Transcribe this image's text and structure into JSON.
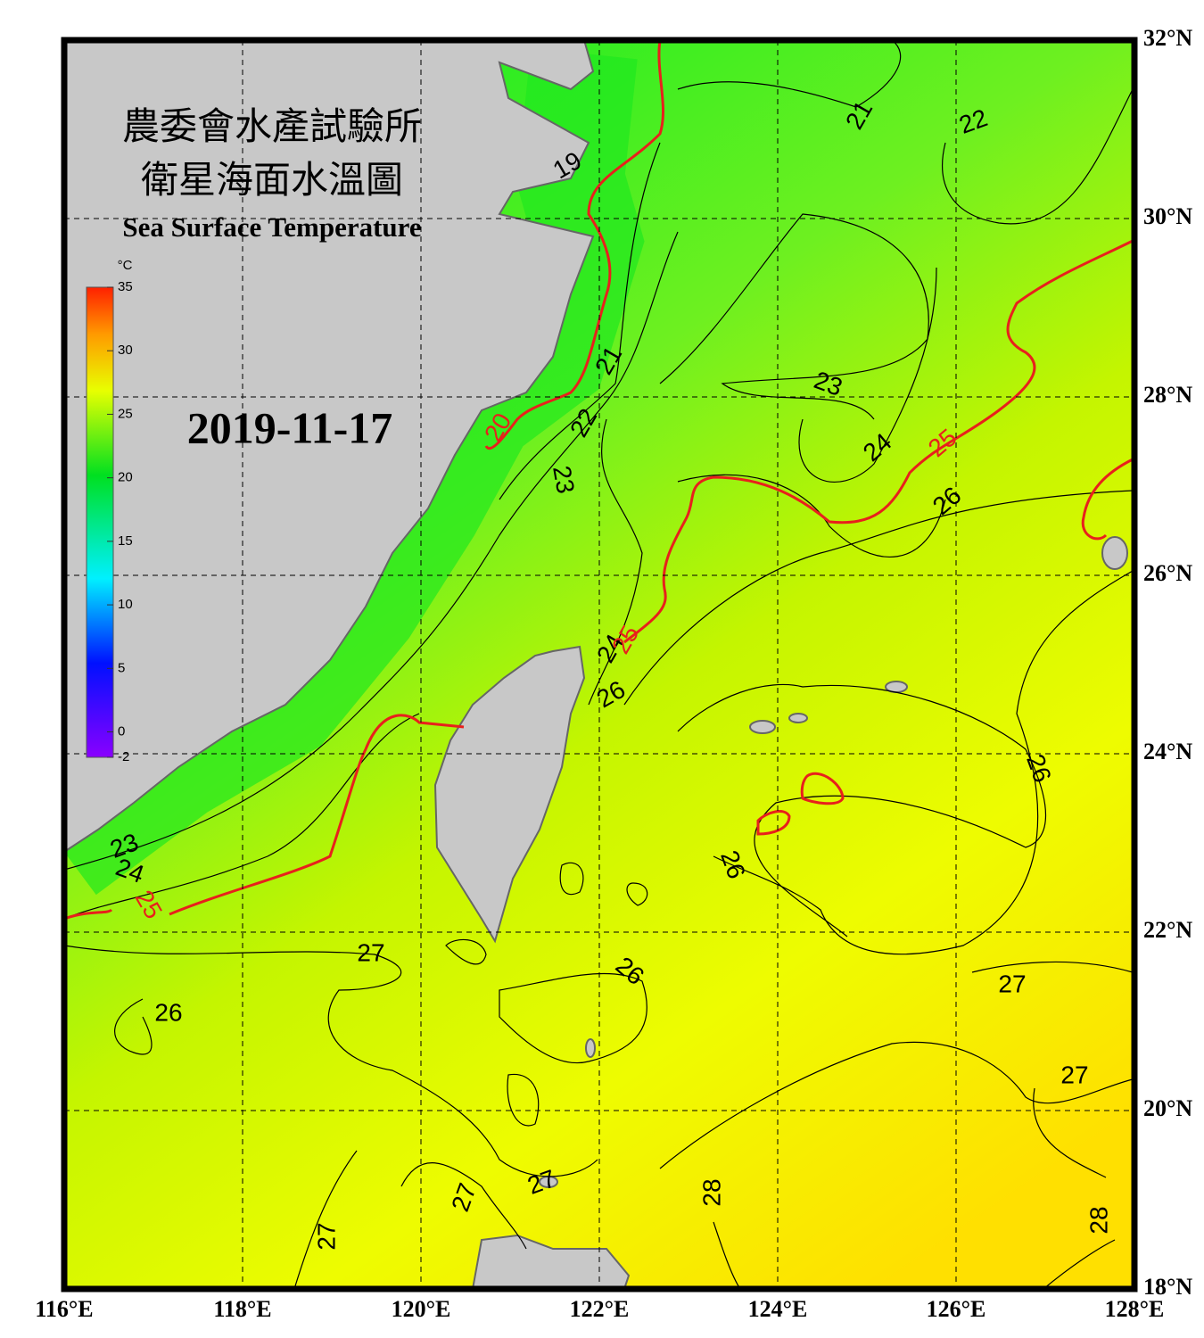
{
  "header": {
    "title_zh_1": "農委會水產試驗所",
    "title_zh_2": "衛星海面水溫圖",
    "title_en": "Sea Surface Temperature",
    "date": "2019-11-17"
  },
  "colorbar": {
    "unit": "°C",
    "range": [
      -2,
      35
    ],
    "ticks": [
      35,
      30,
      25,
      20,
      15,
      10,
      5,
      0,
      -2
    ]
  },
  "map": {
    "lon_range": [
      116,
      128
    ],
    "lat_range": [
      18,
      32
    ],
    "lon_ticks": [
      {
        "value": 116,
        "label": "116°E"
      },
      {
        "value": 118,
        "label": "118°E"
      },
      {
        "value": 120,
        "label": "120°E"
      },
      {
        "value": 122,
        "label": "122°E"
      },
      {
        "value": 124,
        "label": "124°E"
      },
      {
        "value": 126,
        "label": "126°E"
      },
      {
        "value": 128,
        "label": "128°E"
      }
    ],
    "lat_ticks": [
      {
        "value": 32,
        "label": "32°N"
      },
      {
        "value": 30,
        "label": "30°N"
      },
      {
        "value": 28,
        "label": "28°N"
      },
      {
        "value": 26,
        "label": "26°N"
      },
      {
        "value": 24,
        "label": "24°N"
      },
      {
        "value": 22,
        "label": "22°N"
      },
      {
        "value": 20,
        "label": "20°N"
      },
      {
        "value": 18,
        "label": "18°N"
      }
    ],
    "grid": true
  },
  "contour_labels": [
    {
      "text": "19",
      "color": "#000000"
    },
    {
      "text": "21",
      "color": "#000000"
    },
    {
      "text": "22",
      "color": "#000000"
    },
    {
      "text": "21",
      "color": "#000000"
    },
    {
      "text": "20",
      "color": "#e8201c"
    },
    {
      "text": "22",
      "color": "#000000"
    },
    {
      "text": "23",
      "color": "#000000"
    },
    {
      "text": "23",
      "color": "#000000"
    },
    {
      "text": "24",
      "color": "#000000"
    },
    {
      "text": "25",
      "color": "#e8201c"
    },
    {
      "text": "26",
      "color": "#000000"
    },
    {
      "text": "24",
      "color": "#000000"
    },
    {
      "text": "25",
      "color": "#e8201c"
    },
    {
      "text": "26",
      "color": "#000000"
    },
    {
      "text": "26",
      "color": "#000000"
    },
    {
      "text": "26",
      "color": "#000000"
    },
    {
      "text": "23",
      "color": "#000000"
    },
    {
      "text": "24",
      "color": "#000000"
    },
    {
      "text": "25",
      "color": "#e8201c"
    },
    {
      "text": "27",
      "color": "#000000"
    },
    {
      "text": "26",
      "color": "#000000"
    },
    {
      "text": "26",
      "color": "#000000"
    },
    {
      "text": "27",
      "color": "#000000"
    },
    {
      "text": "27",
      "color": "#000000"
    },
    {
      "text": "27",
      "color": "#000000"
    },
    {
      "text": "27",
      "color": "#000000"
    },
    {
      "text": "28",
      "color": "#000000"
    },
    {
      "text": "27",
      "color": "#000000"
    },
    {
      "text": "28",
      "color": "#000000"
    }
  ]
}
